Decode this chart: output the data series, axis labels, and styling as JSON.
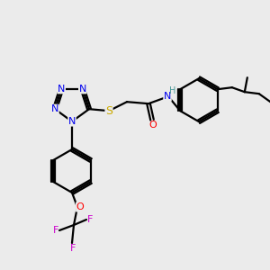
{
  "bg_color": "#ebebeb",
  "atom_colors": {
    "N": "#0000ee",
    "S": "#ccaa00",
    "O": "#ff0000",
    "F": "#cc00cc",
    "H": "#4a9999",
    "C": "#000000"
  },
  "bond_color": "#000000",
  "line_width": 1.6
}
